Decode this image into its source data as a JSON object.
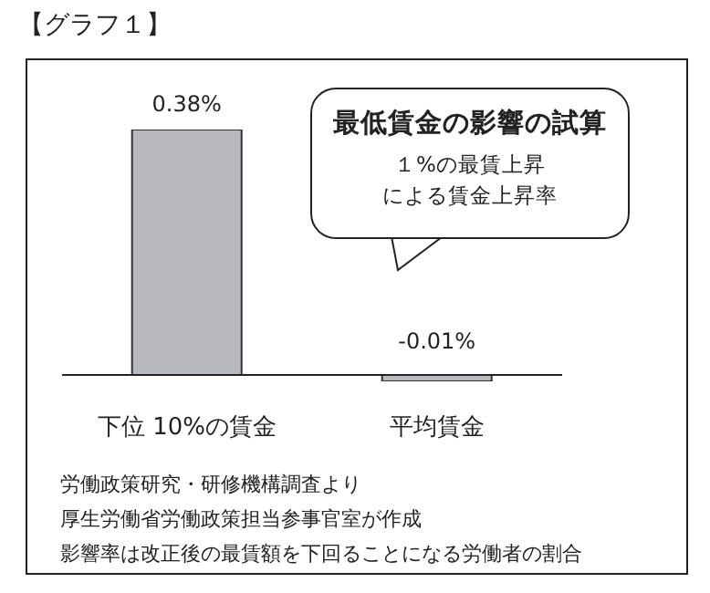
{
  "chart_data": {
    "type": "bar",
    "title": "【グラフ１】",
    "subtitle": "最低賃金の影響の試算",
    "categories": [
      "下位 10%の賃金",
      "平均賃金"
    ],
    "values": [
      0.38,
      -0.01
    ],
    "value_labels": [
      "0.38%",
      "-0.01%"
    ],
    "color": "#b8babd",
    "annotations": [
      "１%の最賃上昇",
      "による賃金上昇率",
      "労働政策研究・研修機構調査より",
      "厚生労働省労働政策担当参事官室が作成",
      "影響率は改正後の最賃額を下回ることになる労働者の割合"
    ]
  }
}
